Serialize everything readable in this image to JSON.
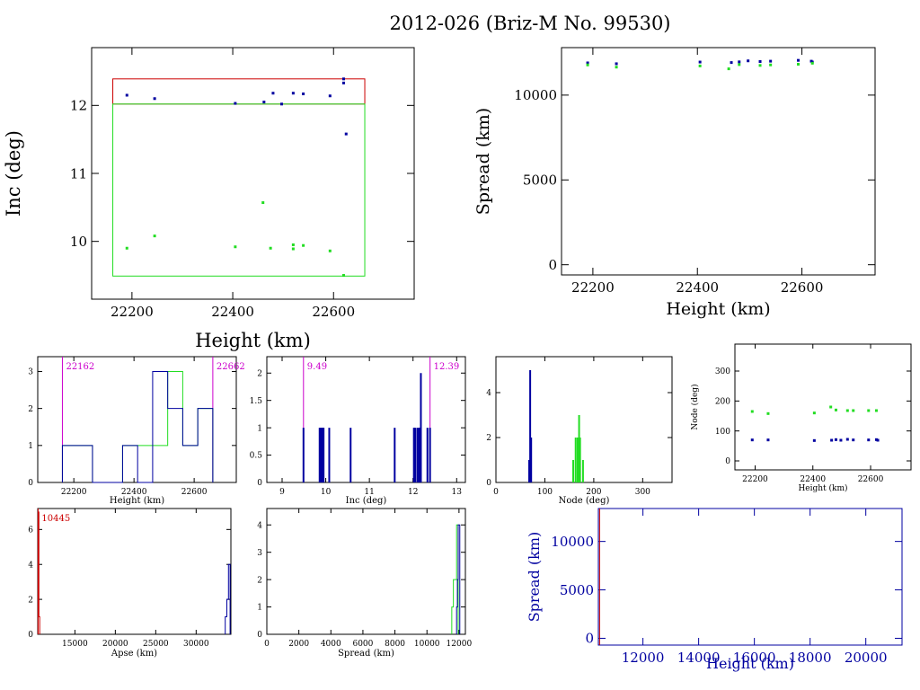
{
  "title": "2012-026 (Briz-M No. 99530)",
  "colors": {
    "blue": "#0000a0",
    "green": "#22dd22",
    "magenta": "#cc00cc",
    "red": "#cc0000",
    "black": "#000000"
  },
  "chart_data": [
    {
      "id": "inc_vs_height",
      "type": "scatter",
      "xlabel": "Height (km)",
      "ylabel": "Inc (deg)",
      "xlim": [
        22120,
        22760
      ],
      "ylim": [
        9.15,
        12.85
      ],
      "xticks": [
        22200,
        22400,
        22600
      ],
      "yticks": [
        10,
        11,
        12
      ],
      "series": [
        {
          "color": "blue",
          "points": [
            [
              22190,
              12.15
            ],
            [
              22245,
              12.1
            ],
            [
              22405,
              12.03
            ],
            [
              22462,
              12.05
            ],
            [
              22480,
              12.18
            ],
            [
              22497,
              12.02
            ],
            [
              22520,
              12.18
            ],
            [
              22540,
              12.17
            ],
            [
              22593,
              12.14
            ],
            [
              22620,
              12.39
            ],
            [
              22620,
              12.33
            ],
            [
              22625,
              11.58
            ]
          ]
        },
        {
          "color": "green",
          "points": [
            [
              22190,
              9.9
            ],
            [
              22245,
              10.08
            ],
            [
              22405,
              9.92
            ],
            [
              22460,
              10.57
            ],
            [
              22475,
              9.9
            ],
            [
              22520,
              9.89
            ],
            [
              22520,
              9.95
            ],
            [
              22540,
              9.94
            ],
            [
              22593,
              9.86
            ],
            [
              22620,
              9.5
            ]
          ]
        }
      ],
      "boxes": [
        {
          "color": "red",
          "x": [
            22162,
            22662
          ],
          "y": [
            12.02,
            12.39
          ]
        },
        {
          "color": "green",
          "x": [
            22162,
            22662
          ],
          "y": [
            9.49,
            12.02
          ]
        }
      ]
    },
    {
      "id": "spread_vs_height",
      "type": "scatter",
      "xlabel": "Height (km)",
      "ylabel": "Spread (km)",
      "xlim": [
        22140,
        22740
      ],
      "ylim": [
        -600,
        12800
      ],
      "xticks": [
        22200,
        22400,
        22600
      ],
      "yticks": [
        0,
        5000,
        10000
      ],
      "series": [
        {
          "color": "blue",
          "points": [
            [
              22190,
              11900
            ],
            [
              22245,
              11850
            ],
            [
              22405,
              11950
            ],
            [
              22465,
              11920
            ],
            [
              22480,
              11960
            ],
            [
              22497,
              12020
            ],
            [
              22520,
              11980
            ],
            [
              22540,
              12000
            ],
            [
              22593,
              12050
            ],
            [
              22618,
              12000
            ],
            [
              22620,
              11950
            ]
          ]
        },
        {
          "color": "green",
          "points": [
            [
              22190,
              11780
            ],
            [
              22245,
              11650
            ],
            [
              22405,
              11720
            ],
            [
              22460,
              11550
            ],
            [
              22480,
              11800
            ],
            [
              22520,
              11750
            ],
            [
              22540,
              11780
            ],
            [
              22593,
              11820
            ],
            [
              22620,
              11880
            ]
          ]
        }
      ]
    },
    {
      "id": "hist_height",
      "type": "histogram",
      "xlabel": "Height (km)",
      "xlim": [
        22080,
        22740
      ],
      "ylim": [
        0,
        3.4
      ],
      "xticks": [
        22200,
        22400,
        22600
      ],
      "yticks": [
        0,
        1,
        2,
        3
      ],
      "lines": [
        {
          "color": "magenta",
          "x": 22162,
          "label": "22162"
        },
        {
          "color": "magenta",
          "x": 22662,
          "label": "22662"
        }
      ],
      "steps": [
        {
          "color": "green",
          "edges": [
            22162,
            22212,
            22262,
            22312,
            22362,
            22412,
            22462,
            22512,
            22562,
            22612,
            22662
          ],
          "counts": [
            1,
            1,
            0,
            0,
            1,
            1,
            1,
            3,
            1,
            2
          ]
        },
        {
          "color": "blue",
          "edges": [
            22162,
            22212,
            22262,
            22312,
            22362,
            22412,
            22462,
            22512,
            22562,
            22612,
            22662
          ],
          "counts": [
            1,
            1,
            0,
            0,
            1,
            0,
            3,
            2,
            1,
            2
          ]
        }
      ]
    },
    {
      "id": "hist_inc",
      "type": "histogram",
      "xlabel": "Inc (deg)",
      "xlim": [
        8.65,
        13.2
      ],
      "ylim": [
        0,
        2.3
      ],
      "xticks": [
        9,
        10,
        11,
        12,
        13
      ],
      "yticks": [
        0,
        0.5,
        1,
        1.5,
        2
      ],
      "lines": [
        {
          "color": "magenta",
          "x": 9.49,
          "label": "9.49"
        },
        {
          "color": "magenta",
          "x": 12.39,
          "label": "12.39"
        }
      ],
      "spikes": [
        {
          "color": "blue",
          "bars": [
            [
              9.49,
              1
            ],
            [
              9.86,
              1
            ],
            [
              9.89,
              1
            ],
            [
              9.9,
              1
            ],
            [
              9.92,
              1
            ],
            [
              9.94,
              1
            ],
            [
              9.95,
              1
            ],
            [
              10.08,
              1
            ],
            [
              10.57,
              1
            ],
            [
              11.58,
              1
            ],
            [
              12.02,
              1
            ],
            [
              12.03,
              1
            ],
            [
              12.05,
              1
            ],
            [
              12.1,
              1
            ],
            [
              12.14,
              1
            ],
            [
              12.15,
              1
            ],
            [
              12.17,
              1
            ],
            [
              12.18,
              2
            ],
            [
              12.33,
              1
            ],
            [
              12.39,
              1
            ]
          ]
        }
      ]
    },
    {
      "id": "hist_node",
      "type": "histogram",
      "xlabel": "Node (deg)",
      "xlim": [
        0,
        360
      ],
      "ylim": [
        0,
        5.6
      ],
      "xticks": [
        0,
        100,
        200,
        300
      ],
      "yticks": [
        0,
        2,
        4
      ],
      "spikes": [
        {
          "color": "blue",
          "bars": [
            [
              68,
              1
            ],
            [
              70,
              5
            ],
            [
              72,
              2
            ]
          ]
        },
        {
          "color": "green",
          "bars": [
            [
              158,
              1
            ],
            [
              163,
              2
            ],
            [
              167,
              2
            ],
            [
              170,
              3
            ],
            [
              172,
              2
            ],
            [
              178,
              1
            ]
          ]
        }
      ]
    },
    {
      "id": "node_vs_height",
      "type": "scatter",
      "xlabel": "Height (km)",
      "ylabel": "Node (deg)",
      "xlim": [
        22130,
        22740
      ],
      "ylim": [
        -30,
        390
      ],
      "xticks": [
        22200,
        22400,
        22600
      ],
      "yticks": [
        0,
        100,
        200,
        300
      ],
      "series": [
        {
          "color": "green",
          "points": [
            [
              22190,
              165
            ],
            [
              22245,
              158
            ],
            [
              22405,
              160
            ],
            [
              22462,
              180
            ],
            [
              22480,
              170
            ],
            [
              22520,
              168
            ],
            [
              22540,
              168
            ],
            [
              22593,
              168
            ],
            [
              22620,
              168
            ]
          ]
        },
        {
          "color": "blue",
          "points": [
            [
              22190,
              70
            ],
            [
              22245,
              70
            ],
            [
              22405,
              68
            ],
            [
              22465,
              69
            ],
            [
              22480,
              71
            ],
            [
              22497,
              69
            ],
            [
              22520,
              72
            ],
            [
              22540,
              70
            ],
            [
              22593,
              70
            ],
            [
              22620,
              71
            ],
            [
              22625,
              69
            ]
          ]
        }
      ]
    },
    {
      "id": "hist_apse",
      "type": "histogram",
      "xlabel": "Apse (km)",
      "xlim": [
        10400,
        34300
      ],
      "ylim": [
        0,
        7.2
      ],
      "xticks": [
        15000,
        20000,
        25000,
        30000
      ],
      "yticks": [
        0,
        2,
        4,
        6
      ],
      "lines": [
        {
          "color": "red",
          "x": 10445,
          "label": "10445"
        }
      ],
      "steps": [
        {
          "color": "red",
          "edges": [
            10445,
            10545,
            10645
          ],
          "counts": [
            7,
            1
          ]
        },
        {
          "color": "blue",
          "edges": [
            33600,
            33800,
            34000,
            34200
          ],
          "counts": [
            1,
            2,
            4
          ]
        }
      ]
    },
    {
      "id": "hist_spread",
      "type": "histogram",
      "xlabel": "Spread (km)",
      "xlim": [
        0,
        12400
      ],
      "ylim": [
        0,
        4.6
      ],
      "xticks": [
        0,
        2000,
        4000,
        6000,
        8000,
        10000,
        12000
      ],
      "yticks": [
        0,
        1,
        2,
        3,
        4
      ],
      "steps": [
        {
          "color": "green",
          "edges": [
            11550,
            11650,
            11750,
            11850,
            11950
          ],
          "counts": [
            1,
            2,
            2,
            4
          ]
        },
        {
          "color": "blue",
          "edges": [
            11850,
            11900,
            11950,
            12000,
            12050
          ],
          "counts": [
            1,
            2,
            4,
            4
          ]
        }
      ]
    },
    {
      "id": "spread_vs_height_wide",
      "type": "scatter",
      "xlabel": "Height (km)",
      "ylabel": "Spread (km)",
      "xlim": [
        10400,
        21300
      ],
      "ylim": [
        -700,
        13400
      ],
      "xticks": [
        12000,
        14000,
        16000,
        18000,
        20000
      ],
      "yticks": [
        0,
        5000,
        10000
      ],
      "lines": [
        {
          "color": "red",
          "x": 10445
        }
      ]
    }
  ]
}
